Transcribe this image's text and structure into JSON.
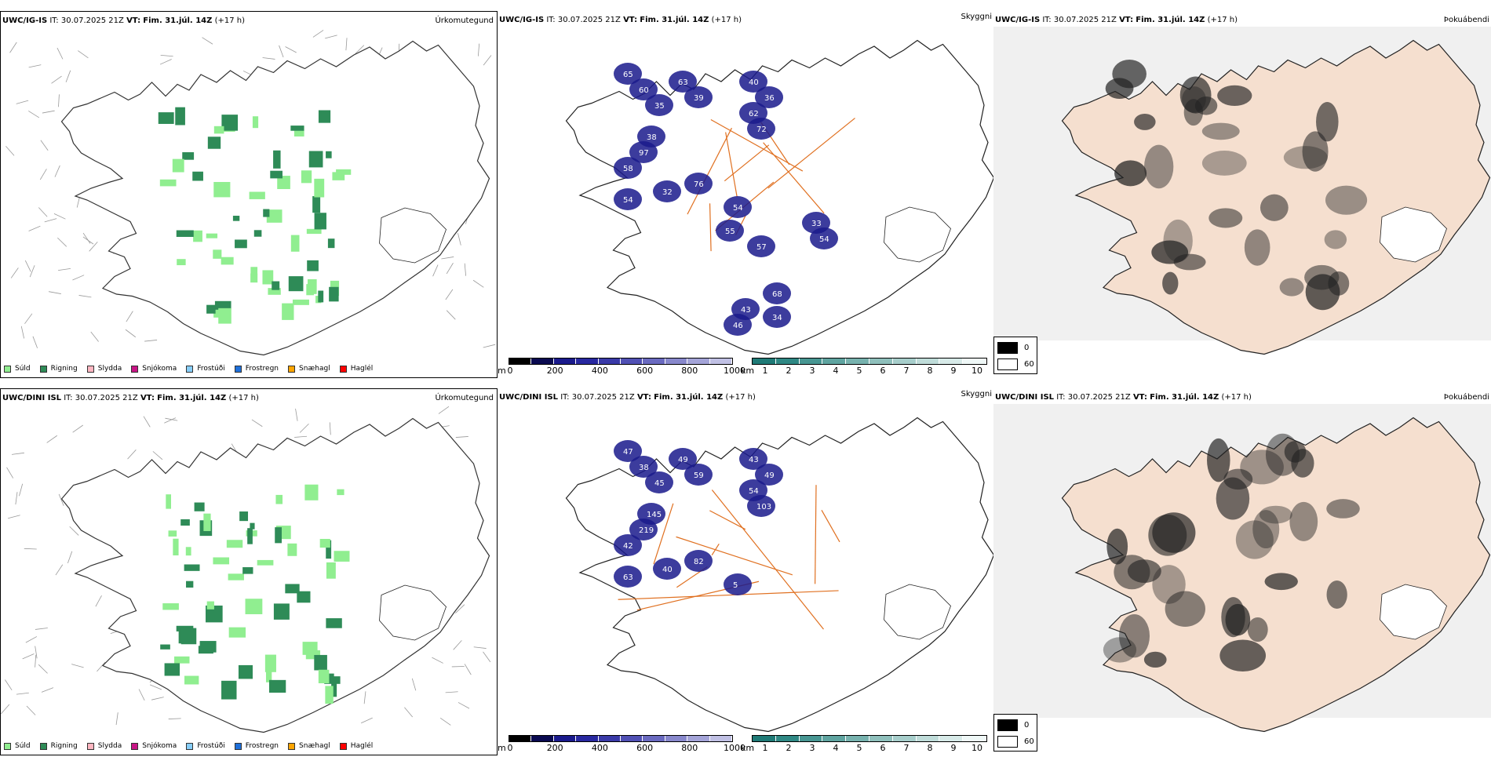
{
  "rows": [
    {
      "model": "UWC/IG-IS",
      "it_label": "IT:",
      "it_value": "30.07.2025 21Z",
      "vt_label": "VT:",
      "vt_value": "Fim. 31.júl. 14Z",
      "lead": "(+17 h)",
      "precip_numbers": [
        "65",
        "60",
        "35",
        "63",
        "39",
        "40",
        "36",
        "62",
        "72",
        "38",
        "97",
        "58",
        "54",
        "32",
        "76",
        "54",
        "55",
        "33",
        "54",
        "57",
        "68",
        "43",
        "34",
        "46"
      ],
      "cloud_numbers": []
    },
    {
      "model": "UWC/DINI ISL",
      "it_label": "IT:",
      "it_value": "30.07.2025 21Z",
      "vt_label": "VT:",
      "vt_value": "Fim. 31.júl. 14Z",
      "lead": "(+17 h)",
      "precip_numbers": [
        "47",
        "38",
        "45",
        "49",
        "59",
        "43",
        "49",
        "54",
        "103",
        "145",
        "219",
        "42",
        "63",
        "40",
        "82",
        "5"
      ],
      "cloud_numbers": []
    }
  ],
  "panel_types": {
    "precip": "Úrkomutegund",
    "visibility": "Skyggni",
    "fog": "Þokuábendi"
  },
  "precip_legend": [
    {
      "label": "Súld",
      "color": "#90ee90"
    },
    {
      "label": "Rigning",
      "color": "#2e8b57"
    },
    {
      "label": "Slydda",
      "color": "#ffb6c1"
    },
    {
      "label": "Snjókoma",
      "color": "#c71585"
    },
    {
      "label": "Frostúði",
      "color": "#87cefa"
    },
    {
      "label": "Frostregn",
      "color": "#1e6fd9"
    },
    {
      "label": "Snæhagl",
      "color": "#ffa500"
    },
    {
      "label": "Haglél",
      "color": "#ff0000"
    }
  ],
  "cloud_base_bar": {
    "unit": "m",
    "ticks": [
      "0",
      "200",
      "400",
      "600",
      "800",
      "1000"
    ],
    "colors": [
      "#000000",
      "#0a0a50",
      "#1a1a8c",
      "#2828a0",
      "#3a3aa8",
      "#5050b4",
      "#6a6ac0",
      "#8888cc",
      "#a4a4d8",
      "#c0c0e4"
    ]
  },
  "visibility_bar": {
    "unit": "km",
    "ticks": [
      "1",
      "2",
      "3",
      "4",
      "5",
      "6",
      "7",
      "8",
      "9",
      "10"
    ],
    "colors": [
      "#1f7a76",
      "#2f8884",
      "#479692",
      "#5fa4a0",
      "#77b2ae",
      "#8fc0bc",
      "#a7cecb",
      "#bfdcd9",
      "#d7eae8",
      "#eff8f7"
    ]
  },
  "fog_legend": {
    "low": "0",
    "high": "60",
    "low_color": "#000000",
    "high_color": "#ffffff"
  }
}
